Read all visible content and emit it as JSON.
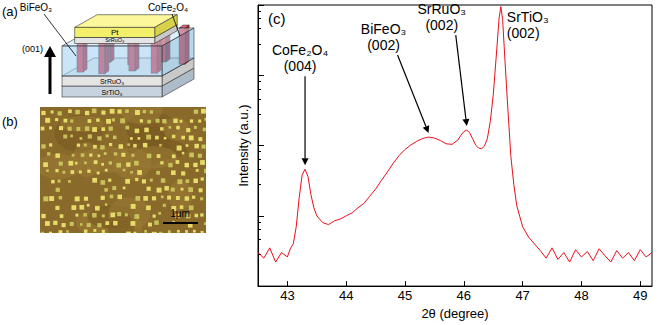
{
  "panel_a": {
    "label": "(a)",
    "direction": "(001)",
    "matrix": "BiFeO₃",
    "pillars": "CoFe₂O₄",
    "top_layers": [
      "Pt",
      "SrRuO₃"
    ],
    "bottom_layers": [
      "SrRuO₃",
      "SrTiO₃"
    ]
  },
  "panel_b": {
    "label": "(b)",
    "scale_bar": "1μm"
  },
  "chart_data": {
    "type": "line",
    "title": "(c)",
    "x_label": "2θ (degree)",
    "y_label": "Intensity (a.u.)",
    "x": [
      42.5,
      42.6,
      42.7,
      42.8,
      42.9,
      43.0,
      43.05,
      43.1,
      43.15,
      43.2,
      43.25,
      43.3,
      43.35,
      43.4,
      43.45,
      43.5,
      43.6,
      43.7,
      43.8,
      43.9,
      44.0,
      44.1,
      44.2,
      44.3,
      44.4,
      44.5,
      44.6,
      44.7,
      44.8,
      44.9,
      45.0,
      45.1,
      45.2,
      45.3,
      45.4,
      45.5,
      45.6,
      45.7,
      45.8,
      45.9,
      45.95,
      46.0,
      46.05,
      46.1,
      46.15,
      46.2,
      46.25,
      46.3,
      46.35,
      46.4,
      46.45,
      46.5,
      46.55,
      46.6,
      46.63,
      46.66,
      46.7,
      46.75,
      46.8,
      46.85,
      46.9,
      47.0,
      47.1,
      47.2,
      47.3,
      47.4,
      47.5,
      47.6,
      47.7,
      47.8,
      47.9,
      48.0,
      48.1,
      48.2,
      48.3,
      48.4,
      48.5,
      48.6,
      48.7,
      48.8,
      48.9,
      49.0,
      49.1,
      49.2
    ],
    "values": [
      3,
      2.5,
      3.5,
      2.2,
      3,
      2.6,
      3.4,
      4,
      7,
      18,
      38,
      46,
      36,
      20,
      13,
      10,
      8,
      7.5,
      8.5,
      9,
      10,
      11,
      13,
      15,
      19,
      24,
      32,
      42,
      56,
      72,
      88,
      102,
      115,
      126,
      132,
      128,
      118,
      106,
      104,
      120,
      140,
      158,
      166,
      152,
      125,
      102,
      92,
      90,
      98,
      125,
      220,
      520,
      1800,
      6500,
      9500,
      6200,
      1600,
      320,
      70,
      28,
      14,
      7,
      5,
      4,
      3.2,
      2.5,
      3.5,
      2.4,
      3,
      2.2,
      3.3,
      2.6,
      3.1,
      2.3,
      3.4,
      2.7,
      2.2,
      3.2,
      2.5,
      3,
      2.3,
      3.3,
      2.6,
      3
    ],
    "color": "#e8101a",
    "xlim": [
      42.5,
      49.2
    ],
    "xticks": [
      43,
      44,
      45,
      46,
      47,
      48,
      49
    ],
    "ylim": [
      1,
      10000
    ],
    "yticks": [
      1,
      10,
      100,
      1000,
      10000
    ],
    "log": "y",
    "tick_labels": "x",
    "grid": false,
    "annotations": [
      {
        "text": [
          "CoFe₂O₄",
          "(004)"
        ],
        "x": 43.3,
        "y": 46
      },
      {
        "text": [
          "BiFeO₃",
          "(002)"
        ],
        "x": 45.4,
        "y": 132
      },
      {
        "text": [
          "SrRuO₃",
          "(002)"
        ],
        "x": 46.05,
        "y": 166
      },
      {
        "text": [
          "SrTiO₃",
          "(002)"
        ],
        "x": 46.63,
        "y": 9500
      }
    ]
  }
}
